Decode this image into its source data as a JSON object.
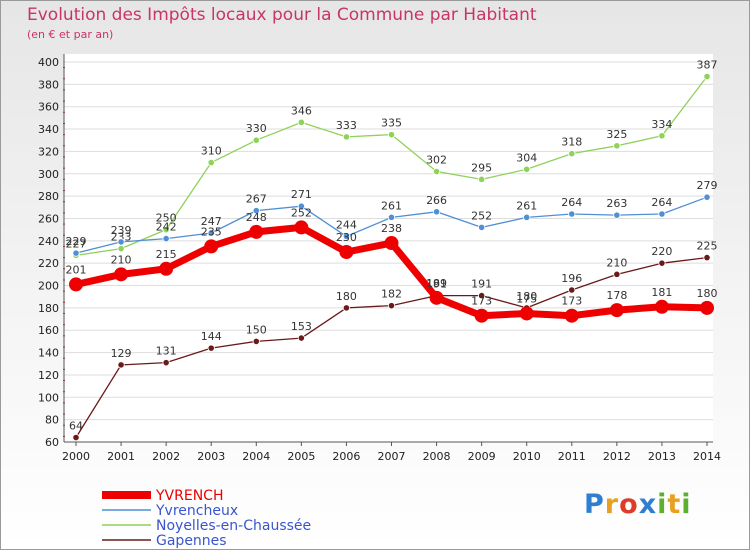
{
  "chart_data": {
    "type": "line",
    "title": "Evolution des Impôts locaux pour la Commune par Habitant",
    "subtitle": "(en € et par an)",
    "xlabel": "",
    "ylabel": "",
    "x": [
      2000,
      2001,
      2002,
      2003,
      2004,
      2005,
      2006,
      2007,
      2008,
      2009,
      2010,
      2011,
      2012,
      2013,
      2014
    ],
    "ylim": [
      60,
      400
    ],
    "yticks": [
      60,
      80,
      100,
      120,
      140,
      160,
      180,
      200,
      220,
      240,
      260,
      280,
      300,
      320,
      340,
      360,
      380,
      400
    ],
    "grid": "horizontal",
    "legend_position": "bottom-left",
    "series": [
      {
        "name": "Gapennes",
        "color": "#6b1a1a",
        "values": [
          64,
          129,
          131,
          144,
          150,
          153,
          180,
          182,
          191,
          191,
          180,
          196,
          210,
          220,
          225
        ]
      },
      {
        "name": "Noyelles-en-Chaussée",
        "color": "#8fd15a",
        "values": [
          227,
          233,
          250,
          310,
          330,
          346,
          333,
          335,
          302,
          295,
          304,
          318,
          325,
          334,
          387
        ]
      },
      {
        "name": "Yvrencheux",
        "color": "#4f8fd6",
        "values": [
          229,
          239,
          242,
          247,
          267,
          271,
          244,
          261,
          266,
          252,
          261,
          264,
          263,
          264,
          279
        ]
      },
      {
        "name": "YVRENCH",
        "color": "#ee0000",
        "values": [
          201,
          210,
          215,
          235,
          248,
          252,
          230,
          238,
          189,
          173,
          175,
          173,
          178,
          181,
          180
        ]
      }
    ],
    "legend_order": [
      3,
      2,
      1,
      0
    ]
  },
  "logo": {
    "text": "Proxiti",
    "letter_colors": [
      "#2f7fd0",
      "#e8a020",
      "#e03a2a",
      "#2f7fd0",
      "#5cb030",
      "#e8a020",
      "#5cb030"
    ]
  }
}
